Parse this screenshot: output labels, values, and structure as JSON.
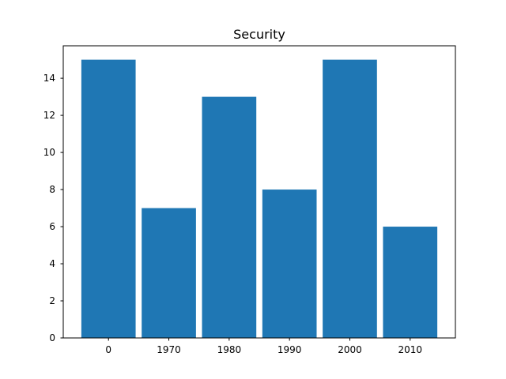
{
  "chart_data": {
    "type": "bar",
    "title": "Security",
    "xlabel": "",
    "ylabel": "",
    "categories": [
      "0",
      "1970",
      "1980",
      "1990",
      "2000",
      "2010"
    ],
    "values": [
      15,
      7,
      13,
      8,
      15,
      6
    ],
    "ylim": [
      0,
      15.75
    ],
    "yticks": [
      0,
      2,
      4,
      6,
      8,
      10,
      12,
      14
    ],
    "grid": false,
    "bar_color": "#1f77b4"
  }
}
